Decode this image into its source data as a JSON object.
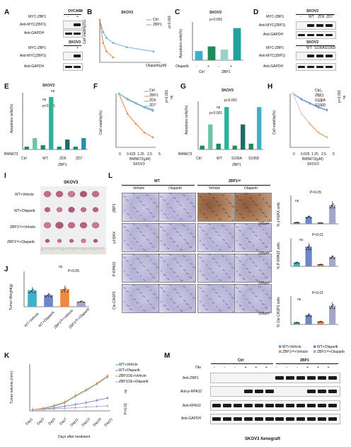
{
  "panels": [
    "A",
    "B",
    "C",
    "D",
    "E",
    "F",
    "G",
    "H",
    "I",
    "J",
    "K",
    "L",
    "M"
  ],
  "A": {
    "ovcar8": "OVCAR8",
    "skov3": "SKOV3",
    "lane_signs": [
      "-",
      "+"
    ],
    "row_myc": "MYC-ZBP1",
    "row_anti_myc": "Anti-MYC(ZBP1)",
    "row_gapdh": "Anti-GAPDH"
  },
  "B": {
    "title": "SKOV3",
    "ylabel": "Cell viability(%)",
    "xlabel": "Olaparib(μM)",
    "legend": [
      "Ctrl",
      "ZBP1"
    ],
    "pval": "p<0.001",
    "colors": {
      "ctrl": "#6aaed6",
      "zbp1": "#f0883e"
    }
  },
  "C": {
    "title": "SKOV3",
    "ylabel": "Apoptosis cells(%)",
    "pval": "p<0.001",
    "olaparib": "Olaparib",
    "signs": [
      "-",
      "+",
      "-",
      "+"
    ],
    "groups": [
      "Ctrl",
      "ZBP1"
    ]
  },
  "D": {
    "skov3": "SKOV3",
    "myc": "MYC-ZBP1",
    "lanes1": [
      "-",
      "WT",
      "ZD6",
      "ZD7"
    ],
    "lanes2": [
      "-",
      "WT",
      "S106A",
      "S106D"
    ],
    "anti_myc": "Anti-MYC(ZBP1)",
    "gapdh": "Anti-GAPDH"
  },
  "E": {
    "title": "SKOV3",
    "ylabel": "Apoptosis cells(%)",
    "bmn": "BMN673",
    "signs": [
      "-",
      "+",
      "-",
      "+",
      "-",
      "+",
      "-",
      "+"
    ],
    "groups": [
      "Ctrl",
      "WT",
      "ZD6",
      "ZD7"
    ],
    "group_label": "ZBP1",
    "pval": "p<0.001",
    "ns": "ns"
  },
  "F": {
    "ylabel": "Cell viability(%)",
    "xlabel": "BMN673(μM)",
    "xticks": [
      "0",
      "0.625",
      "1.25",
      "2.5",
      "5"
    ],
    "sub": "SKOV3",
    "legend": [
      "Ctrl",
      "ZBP1",
      "ZD6",
      "ZD7"
    ],
    "pval": "p<0.001",
    "ns": "ns"
  },
  "G": {
    "title": "SKOV3",
    "ylabel": "Apoptosis cells(%)",
    "bmn": "BMN673",
    "signs": [
      "-",
      "+",
      "-",
      "+",
      "-",
      "+",
      "-",
      "+"
    ],
    "groups": [
      "Ctrl",
      "WT",
      "S106A",
      "S106D"
    ],
    "group_label": "ZBP1",
    "pval": "p<0.001",
    "ns": "ns"
  },
  "H": {
    "ylabel": "Cell viability(%)",
    "xlabel": "BMN673(μM)",
    "xticks": [
      "0",
      "0.625",
      "1.25",
      "2.5",
      "5"
    ],
    "sub": "SKOV3",
    "legend": [
      "Ctrl",
      "ZBP1",
      "S106A",
      "S106D"
    ],
    "pval": "p<0.001",
    "ns": "ns"
  },
  "I": {
    "title": "SKOV3",
    "rows": [
      "WT+Vehicle",
      "WT+Olaparib",
      "ZBP1ᴼᴱ+Vehicle",
      "ZBP1ᴼᴱ+Olaparib"
    ]
  },
  "J": {
    "ylabel": "Tumor Weight(g)",
    "pval": "P<0.05",
    "ns": "ns",
    "groups": [
      "WT+Vehicle",
      "WT+Olaparib",
      "ZBP1ᴼᴱ+Vehicle",
      "ZBP1ᴼᴱ+Olaparib"
    ]
  },
  "K": {
    "ylabel": "Tumor volume (mm³)",
    "xlabel": "Days after treatment",
    "xticks": [
      "Day1",
      "Day3",
      "Day5",
      "Day7",
      "Day11",
      "Day13",
      "Day18",
      "Day21"
    ],
    "legend": [
      "WT+Vehicle",
      "WT+Olaparib",
      "ZBP1OE+Vehicle",
      "ZBP1OE+Olaparib"
    ],
    "ns": "ns",
    "pval": "P<0.01"
  },
  "L": {
    "col_groups": [
      "WT",
      "ZBP1ᴼᴱ"
    ],
    "cols": [
      "Vehicle",
      "Olaparib",
      "Vehicle",
      "Olaparib"
    ],
    "rows": [
      "ZBP1",
      "γ-H2AX",
      "P-RPA32",
      "Cle-CASP3"
    ],
    "scale": "100μm",
    "chart_ylabels": [
      "% γ-H2AX cells",
      "% P-RPA32 cells",
      "% Cle-CASP3 cells"
    ],
    "pvals": [
      "P<0.05",
      "P<0.01",
      "P<0.01"
    ],
    "ns": "ns",
    "legend": [
      "WT+Vehicle",
      "WT+Olaparib",
      "ZBP1ᴼᴱ+Vehicle",
      "ZBP1ᴼᴱ+Olaparib"
    ]
  },
  "M": {
    "ola": "Ola",
    "ctrl": "Ctrl",
    "zbp1": "ZBP1",
    "signs": [
      "-",
      "-",
      "-",
      "+",
      "+",
      "+",
      "-",
      "-",
      "-",
      "+",
      "+",
      "+"
    ],
    "rows": [
      "Anti-ZBP1",
      "Anti-p-RPA32",
      "Anti-RPA32",
      "Anti-GAPDH"
    ],
    "caption": "SKOV3 Xenograft"
  },
  "chart_data": [
    {
      "id": "B",
      "type": "line",
      "title": "SKOV3",
      "xlabel": "Olaparib(μM)",
      "ylabel": "Cell viability(%)",
      "series": [
        {
          "name": "Ctrl",
          "x": [
            0,
            5,
            10,
            20,
            40,
            80
          ],
          "values": [
            100,
            80,
            70,
            62,
            55,
            48
          ]
        },
        {
          "name": "ZBP1",
          "x": [
            0,
            5,
            10,
            20
          ],
          "values": [
            100,
            62,
            48,
            38
          ]
        }
      ]
    },
    {
      "id": "C",
      "type": "bar",
      "title": "SKOV3",
      "ylabel": "Apoptosis cells(%)",
      "categories": [
        "Ctrl -",
        "Ctrl +",
        "ZBP1 -",
        "ZBP1 +"
      ],
      "values": [
        6,
        9,
        7,
        21
      ],
      "ylim": [
        0,
        25
      ]
    },
    {
      "id": "E",
      "type": "bar",
      "title": "SKOV3",
      "ylabel": "Apoptosis cells(%)",
      "categories": [
        "Ctrl -",
        "Ctrl +",
        "WT -",
        "WT +",
        "ZD6 -",
        "ZD6 +",
        "ZD7 -",
        "ZD7 +"
      ],
      "values": [
        2,
        8,
        3,
        37,
        2,
        7,
        2,
        8
      ],
      "ylim": [
        0,
        40
      ]
    },
    {
      "id": "F",
      "type": "line",
      "xlabel": "BMN673(μM)",
      "ylabel": "Cell viability(%)",
      "x": [
        0,
        0.625,
        1.25,
        2.5,
        5
      ],
      "series": [
        {
          "name": "Ctrl",
          "values": [
            100,
            92,
            85,
            80,
            75
          ]
        },
        {
          "name": "ZBP1",
          "values": [
            100,
            70,
            55,
            42,
            35
          ]
        },
        {
          "name": "ZD6",
          "values": [
            100,
            92,
            86,
            80,
            76
          ]
        },
        {
          "name": "ZD7",
          "values": [
            100,
            91,
            85,
            79,
            74
          ]
        }
      ]
    },
    {
      "id": "G",
      "type": "bar",
      "title": "SKOV3",
      "ylabel": "Apoptosis cells(%)",
      "categories": [
        "Ctrl -",
        "Ctrl +",
        "WT -",
        "WT +",
        "S106A -",
        "S106A +",
        "S106D -",
        "S106D +"
      ],
      "values": [
        2,
        13,
        3,
        22,
        2,
        13,
        3,
        22
      ],
      "ylim": [
        0,
        25
      ]
    },
    {
      "id": "H",
      "type": "line",
      "xlabel": "BMN673(μM)",
      "ylabel": "Cell viability(%)",
      "x": [
        0,
        0.625,
        1.25,
        2.5,
        5
      ],
      "series": [
        {
          "name": "Ctrl",
          "values": [
            100,
            92,
            86,
            80,
            76
          ]
        },
        {
          "name": "ZBP1",
          "values": [
            100,
            70,
            55,
            42,
            35
          ]
        },
        {
          "name": "S106A",
          "values": [
            100,
            91,
            85,
            79,
            75
          ]
        },
        {
          "name": "S106D",
          "values": [
            100,
            70,
            54,
            41,
            34
          ]
        }
      ]
    },
    {
      "id": "J",
      "type": "bar",
      "ylabel": "Tumor Weight(g)",
      "categories": [
        "WT+Vehicle",
        "WT+Olaparib",
        "ZBP1OE+Vehicle",
        "ZBP1OE+Olaparib"
      ],
      "values": [
        0.7,
        0.5,
        0.75,
        0.22
      ],
      "ylim": [
        0,
        1.5
      ]
    },
    {
      "id": "K",
      "type": "line",
      "xlabel": "Days after treatment",
      "ylabel": "Tumor volume (mm³)",
      "categories": [
        "Day1",
        "Day3",
        "Day5",
        "Day7",
        "Day11",
        "Day13",
        "Day18",
        "Day21"
      ],
      "series": [
        {
          "name": "WT+Vehicle",
          "values": [
            20,
            40,
            80,
            140,
            250,
            350,
            460,
            580
          ]
        },
        {
          "name": "WT+Olaparib",
          "values": [
            20,
            30,
            50,
            80,
            110,
            140,
            180,
            220
          ]
        },
        {
          "name": "ZBP1OE+Vehicle",
          "values": [
            20,
            45,
            90,
            150,
            260,
            360,
            470,
            600
          ]
        },
        {
          "name": "ZBP1OE+Olaparib",
          "values": [
            20,
            25,
            35,
            45,
            55,
            65,
            75,
            85
          ]
        }
      ],
      "ylim": [
        0,
        800
      ]
    },
    {
      "id": "L1",
      "type": "bar",
      "ylabel": "% γ-H2AX cells",
      "categories": [
        "WT+Vehicle",
        "WT+Olaparib",
        "ZBP1OE+Vehicle",
        "ZBP1OE+Olaparib"
      ],
      "values": [
        3,
        15,
        2,
        40
      ],
      "ylim": [
        0,
        60
      ]
    },
    {
      "id": "L2",
      "type": "bar",
      "ylabel": "% P-RPA32 cells",
      "categories": [
        "WT+Vehicle",
        "WT+Olaparib",
        "ZBP1OE+Vehicle",
        "ZBP1OE+Olaparib"
      ],
      "values": [
        4,
        21,
        2,
        10
      ],
      "ylim": [
        0,
        30
      ]
    },
    {
      "id": "L3",
      "type": "bar",
      "ylabel": "% Cle-CASP3 cells",
      "categories": [
        "WT+Vehicle",
        "WT+Olaparib",
        "ZBP1OE+Vehicle",
        "ZBP1OE+Olaparib"
      ],
      "values": [
        2,
        10,
        3,
        20
      ],
      "ylim": [
        0,
        30
      ]
    }
  ]
}
